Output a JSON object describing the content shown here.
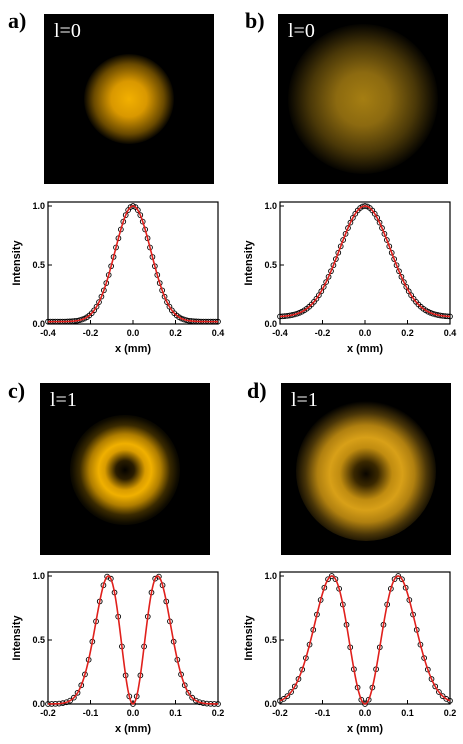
{
  "panels": [
    {
      "letter": "a)",
      "beam_label": "l=0",
      "beam_color": "#e6a400",
      "chart_data": {
        "type": "line",
        "xlabel": "x (mm)",
        "ylabel": "Intensity",
        "xlim": [
          -0.4,
          0.4
        ],
        "ylim": [
          0.0,
          1.0
        ],
        "xticks": [
          "-0.4",
          "-0.2",
          "0.0",
          "0.2",
          "0.4"
        ],
        "yticks": [
          "0.0",
          "0.5",
          "1.0"
        ],
        "mode": 0,
        "w": 0.12,
        "x_shift": 0.0,
        "baseline": 0.02,
        "series": [
          {
            "kind": "measured",
            "marker": "circle",
            "color": "#000000"
          },
          {
            "kind": "fit",
            "marker": "line",
            "color": "#e0201c"
          }
        ]
      }
    },
    {
      "letter": "b)",
      "beam_label": "l=0",
      "beam_color": "#b88a1a",
      "chart_data": {
        "type": "line",
        "xlabel": "x (mm)",
        "ylabel": "Intensity",
        "xlim": [
          -0.4,
          0.4
        ],
        "ylim": [
          0.0,
          1.0
        ],
        "xticks": [
          "-0.4",
          "-0.2",
          "0.0",
          "0.2",
          "0.4"
        ],
        "yticks": [
          "0.0",
          "0.5",
          "1.0"
        ],
        "mode": 0,
        "w": 0.17,
        "x_shift": 0.0,
        "baseline": 0.06,
        "series": [
          {
            "kind": "measured",
            "marker": "circle",
            "color": "#000000"
          },
          {
            "kind": "fit",
            "marker": "line",
            "color": "#e0201c"
          }
        ]
      }
    },
    {
      "letter": "c)",
      "beam_label": "l=1",
      "beam_color": "#e0a400",
      "chart_data": {
        "type": "line",
        "xlabel": "x (mm)",
        "ylabel": "Intensity",
        "xlim": [
          -0.2,
          0.2
        ],
        "ylim": [
          0.0,
          1.0
        ],
        "xticks": [
          "-0.2",
          "-0.1",
          "0.0",
          "0.1",
          "0.2"
        ],
        "yticks": [
          "0.0",
          "0.5",
          "1.0"
        ],
        "mode": 1,
        "w": 0.058,
        "x_shift": 0.0,
        "baseline": 0.0,
        "series": [
          {
            "kind": "measured",
            "marker": "circle",
            "color": "#000000"
          },
          {
            "kind": "fit",
            "marker": "line",
            "color": "#e0201c"
          }
        ]
      }
    },
    {
      "letter": "d)",
      "beam_label": "l=1",
      "beam_color": "#d99e10",
      "chart_data": {
        "type": "line",
        "xlabel": "x (mm)",
        "ylabel": "Intensity",
        "xlim": [
          -0.2,
          0.2
        ],
        "ylim": [
          0.0,
          1.0
        ],
        "xticks": [
          "-0.2",
          "-0.1",
          "0.0",
          "0.1",
          "0.2"
        ],
        "yticks": [
          "0.0",
          "0.5",
          "1.0"
        ],
        "mode": 1,
        "w": 0.078,
        "x_shift": 0.0,
        "baseline": 0.0,
        "series": [
          {
            "kind": "measured",
            "marker": "circle",
            "color": "#000000"
          },
          {
            "kind": "fit",
            "marker": "line",
            "color": "#e0201c"
          }
        ]
      }
    }
  ]
}
